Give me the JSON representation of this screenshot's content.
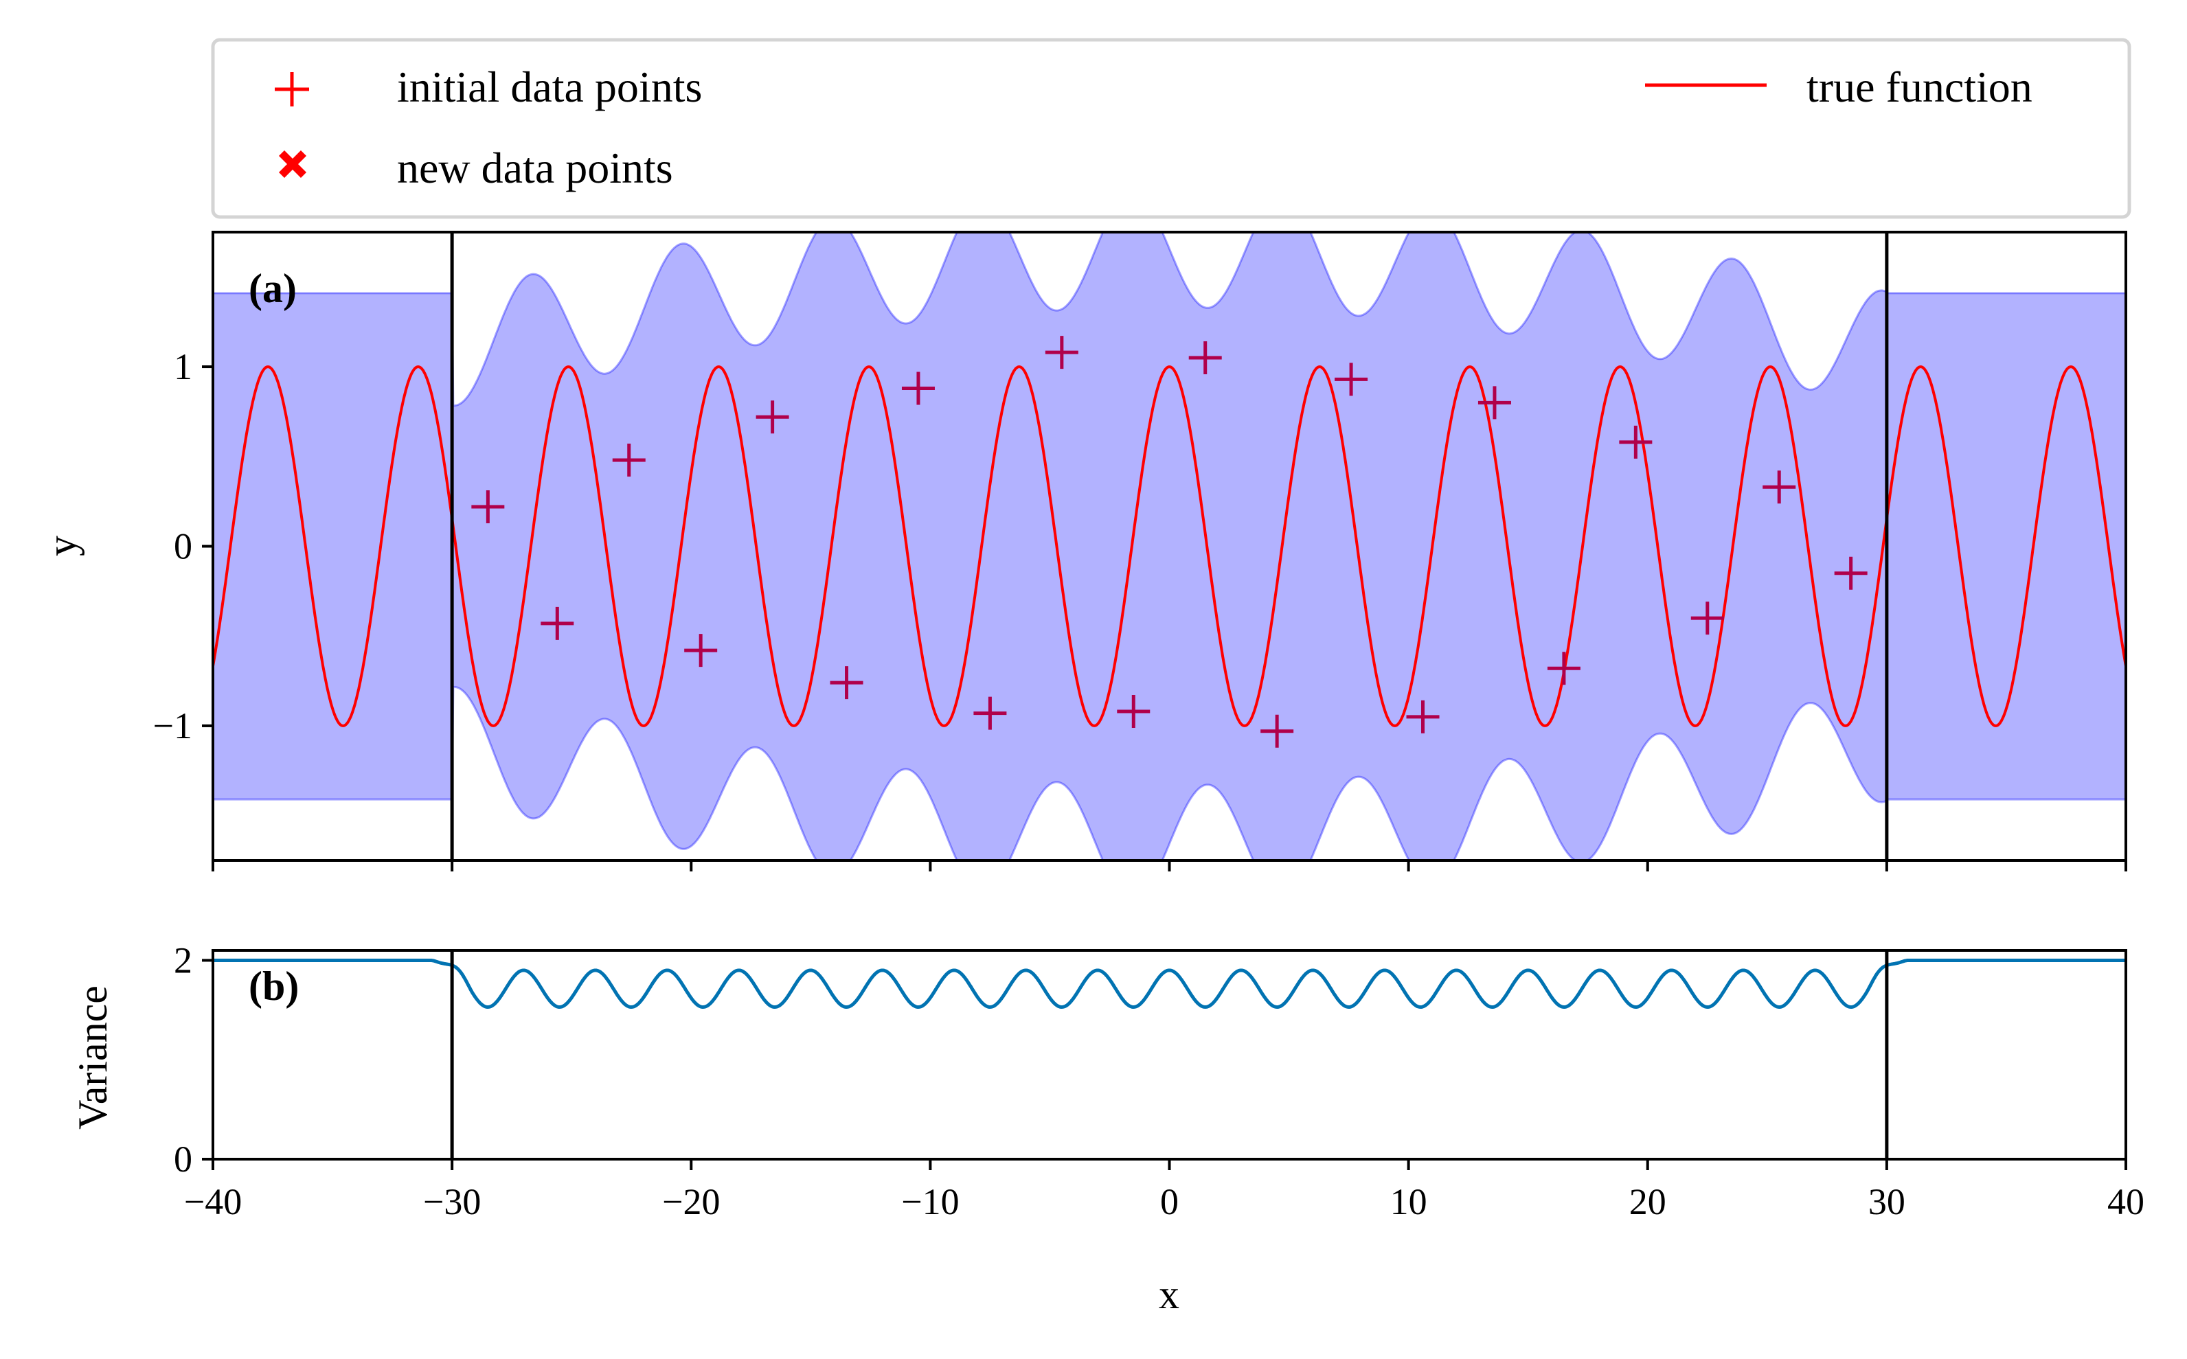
{
  "legend": {
    "items": [
      {
        "label": "initial data points",
        "marker": "plus",
        "color": "#ff0000"
      },
      {
        "label": "new data points",
        "marker": "x-filled",
        "color": "#ff0000"
      },
      {
        "label": "true function",
        "marker": "line",
        "color": "#ff0000"
      }
    ]
  },
  "colors": {
    "true_function": "#ff0000",
    "uncertainty_band": "#0000ff",
    "variance_line": "#0173b2",
    "data_points": "#b0004a",
    "frame": "#000000"
  },
  "chart_data": [
    {
      "panel_label": "(a)",
      "type": "line",
      "xlabel": "",
      "ylabel": "y",
      "xlim": [
        -40,
        40
      ],
      "ylim": [
        -1.75,
        1.75
      ],
      "yticks": [
        -1,
        0,
        1
      ],
      "ytick_labels": [
        "−1",
        "0",
        "1"
      ],
      "xticks": [
        -40,
        -30,
        -20,
        -10,
        0,
        10,
        20,
        30,
        40
      ],
      "vertical_lines": [
        -30,
        30
      ],
      "true_function": {
        "form": "cos(x)",
        "amplitude": 1,
        "period": 6.28
      },
      "initial_data_points": {
        "x": [
          -28.5,
          -25.6,
          -22.6,
          -19.6,
          -16.6,
          -13.5,
          -7.5,
          -1.5,
          1.5,
          4.5,
          7.6,
          10.6,
          13.6,
          16.5,
          19.5,
          22.5,
          25.5,
          28.5,
          -10.5,
          -4.5
        ],
        "y": [
          0.22,
          -0.43,
          0.48,
          -0.58,
          0.72,
          -0.76,
          -0.93,
          -0.92,
          1.05,
          -1.03,
          0.93,
          -0.95,
          0.8,
          -0.68,
          0.58,
          -0.4,
          0.33,
          -0.15,
          0.88,
          1.08
        ]
      },
      "uncertainty_band": {
        "outside_half_width": 1.41,
        "inside_base_half_width": 1.17,
        "inside_oscillation_amplitude": 0.35,
        "envelope_peak": 0.5
      }
    },
    {
      "panel_label": "(b)",
      "type": "line",
      "xlabel": "x",
      "ylabel": "Variance",
      "xlim": [
        -40,
        40
      ],
      "ylim": [
        0,
        2.1
      ],
      "yticks": [
        0,
        2
      ],
      "ytick_labels": [
        "0",
        "2"
      ],
      "xticks": [
        -40,
        -30,
        -20,
        -10,
        0,
        10,
        20,
        30,
        40
      ],
      "xtick_labels": [
        "−40",
        "−30",
        "−20",
        "−10",
        "0",
        "10",
        "20",
        "30",
        "40"
      ],
      "vertical_lines": [
        -30,
        30
      ],
      "variance": {
        "outside": 2.0,
        "inside_min": 1.53,
        "inside_max": 1.9
      }
    }
  ]
}
